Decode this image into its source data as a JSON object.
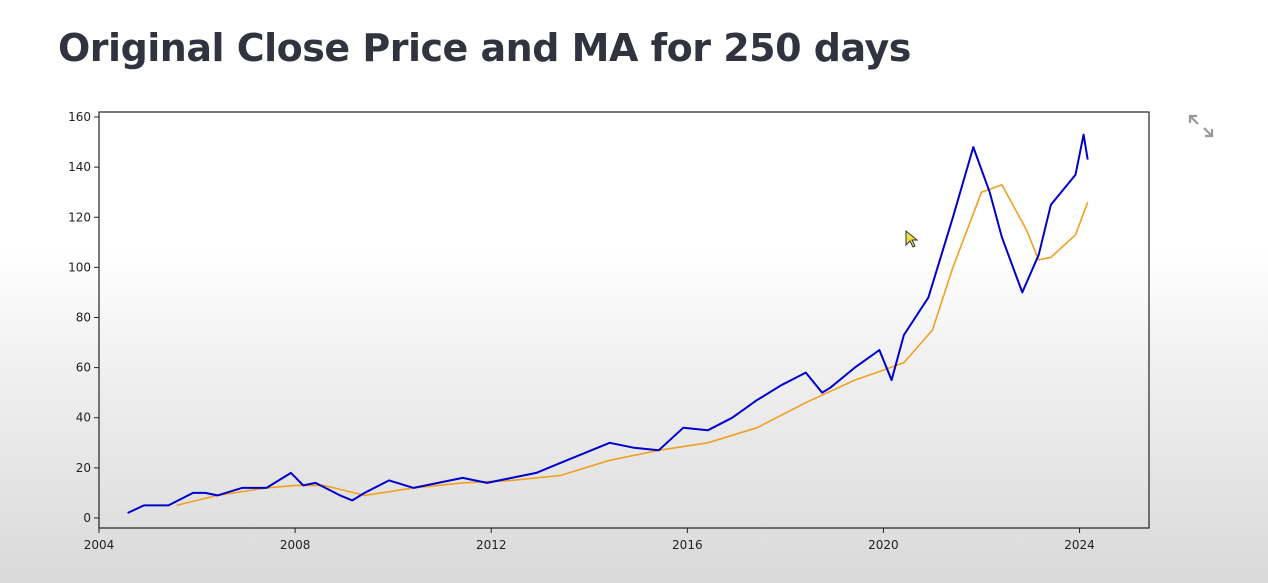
{
  "page": {
    "title": "Original Close Price and MA for 250 days"
  },
  "icons": {
    "fullscreen": "expand-arrows-icon",
    "cursor": "mouse-pointer-icon"
  },
  "colors": {
    "price_line": "#0000cc",
    "ma_line": "#f0a020",
    "title": "#31333f"
  },
  "chart_data": {
    "type": "line",
    "title": "",
    "xlabel": "",
    "ylabel": "",
    "xlim": [
      "2004-01-01",
      "2025-06-01"
    ],
    "ylim": [
      -4,
      162
    ],
    "x_ticks": [
      "2004",
      "2008",
      "2012",
      "2016",
      "2020",
      "2024"
    ],
    "y_ticks": [
      0,
      20,
      40,
      60,
      80,
      100,
      120,
      140,
      160
    ],
    "grid": false,
    "legend": "none",
    "series": [
      {
        "color": "#0000cc",
        "x": [
          "2004-08",
          "2004-12",
          "2005-06",
          "2005-12",
          "2006-03",
          "2006-06",
          "2006-12",
          "2007-06",
          "2007-12",
          "2008-03",
          "2008-06",
          "2008-12",
          "2009-03",
          "2009-06",
          "2009-12",
          "2010-06",
          "2010-12",
          "2011-06",
          "2011-12",
          "2012-06",
          "2012-12",
          "2013-06",
          "2013-12",
          "2014-06",
          "2014-12",
          "2015-06",
          "2015-12",
          "2016-06",
          "2016-12",
          "2017-06",
          "2017-12",
          "2018-06",
          "2018-10",
          "2018-12",
          "2019-06",
          "2019-12",
          "2020-03",
          "2020-06",
          "2020-12",
          "2021-06",
          "2021-11",
          "2022-03",
          "2022-06",
          "2022-11",
          "2023-03",
          "2023-06",
          "2023-12",
          "2024-02",
          "2024-03"
        ],
        "values": [
          2,
          5,
          5,
          10,
          10,
          9,
          12,
          12,
          18,
          13,
          14,
          9,
          7,
          10,
          15,
          12,
          14,
          16,
          14,
          16,
          18,
          22,
          26,
          30,
          28,
          27,
          36,
          35,
          40,
          47,
          53,
          58,
          50,
          52,
          60,
          67,
          55,
          73,
          88,
          120,
          148,
          130,
          112,
          90,
          105,
          125,
          137,
          153,
          143
        ]
      },
      {
        "color": "#f0a020",
        "x": [
          "2005-08",
          "2006-06",
          "2007-06",
          "2008-01",
          "2008-08",
          "2009-06",
          "2010-06",
          "2011-06",
          "2012-06",
          "2013-06",
          "2014-06",
          "2015-06",
          "2016-06",
          "2017-06",
          "2018-06",
          "2019-06",
          "2020-01",
          "2020-06",
          "2021-01",
          "2021-06",
          "2022-01",
          "2022-06",
          "2022-12",
          "2023-03",
          "2023-06",
          "2023-12",
          "2024-03"
        ],
        "values": [
          5,
          9,
          12,
          13,
          13,
          9,
          12,
          14,
          15,
          17,
          23,
          27,
          30,
          36,
          46,
          55,
          59,
          62,
          75,
          100,
          130,
          133,
          115,
          103,
          104,
          113,
          126
        ]
      }
    ]
  }
}
